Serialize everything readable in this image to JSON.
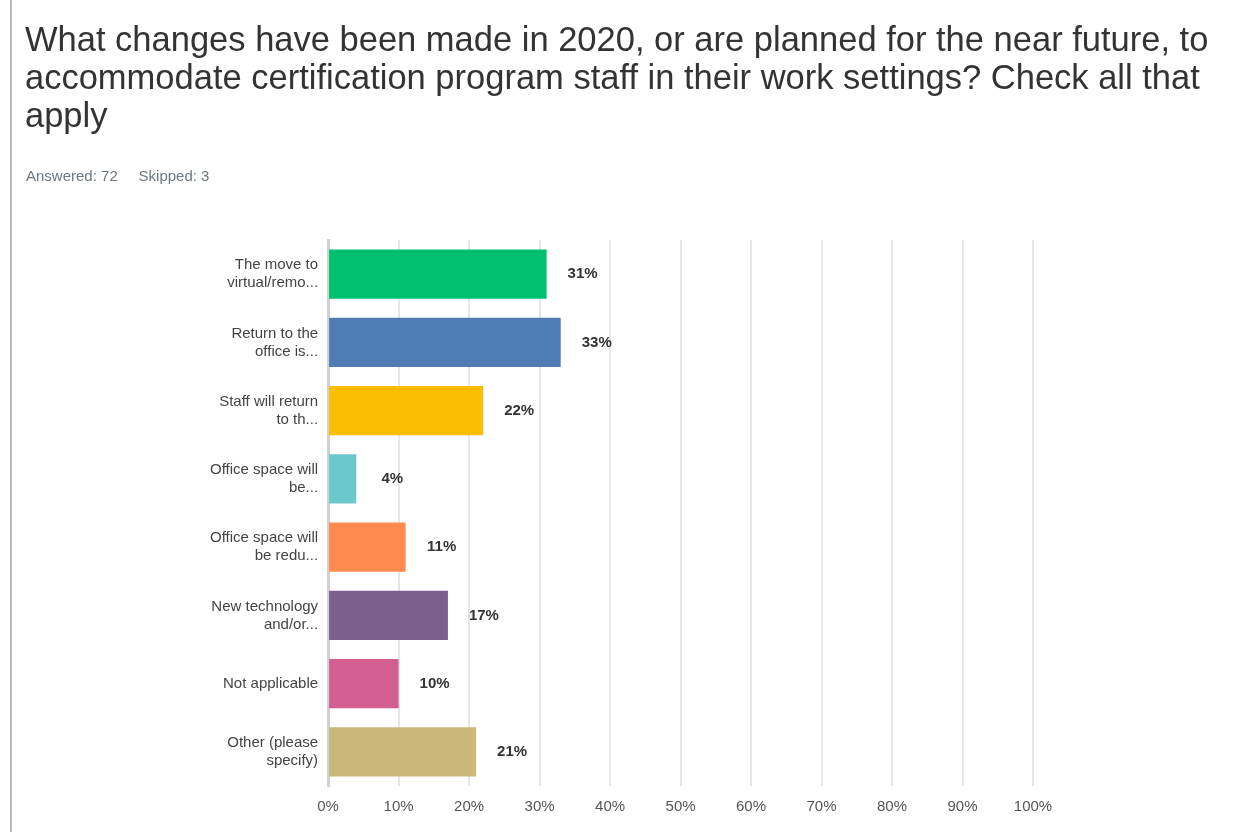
{
  "chart_data": {
    "type": "bar",
    "orientation": "horizontal",
    "title": "What changes have been made in 2020, or are planned for the near future, to accommodate certification program staff in their work settings? Check all that apply",
    "subtitle": "Answered: 72     Skipped: 3",
    "categories": [
      "The move to virtual/remo...",
      "Return to the office is...",
      "Staff will return to th...",
      "Office space will be...",
      "Office space will be redu...",
      "New technology and/or...",
      "Not applicable",
      "Other (please specify)"
    ],
    "values": [
      31,
      33,
      22,
      4,
      11,
      17,
      10,
      21
    ],
    "colors": [
      "#00bf6f",
      "#507cb6",
      "#f9be00",
      "#6bc8cd",
      "#ff8b4f",
      "#7d5e8d",
      "#d25f90",
      "#c9b87a"
    ],
    "value_labels": [
      "31%",
      "33%",
      "22%",
      "4%",
      "11%",
      "17%",
      "10%",
      "21%"
    ],
    "xlim": [
      0,
      100
    ],
    "xticks": [
      {
        "value": 0,
        "label": "0%"
      },
      {
        "value": 10,
        "label": "10%"
      },
      {
        "value": 20,
        "label": "20%"
      },
      {
        "value": 30,
        "label": "30%"
      },
      {
        "value": 40,
        "label": "40%"
      },
      {
        "value": 50,
        "label": "50%"
      },
      {
        "value": 60,
        "label": "60%"
      },
      {
        "value": 70,
        "label": "70%"
      },
      {
        "value": 80,
        "label": "80%"
      },
      {
        "value": 90,
        "label": "90%"
      },
      {
        "value": 100,
        "label": "100%"
      }
    ],
    "grid": "x",
    "legend": false
  }
}
